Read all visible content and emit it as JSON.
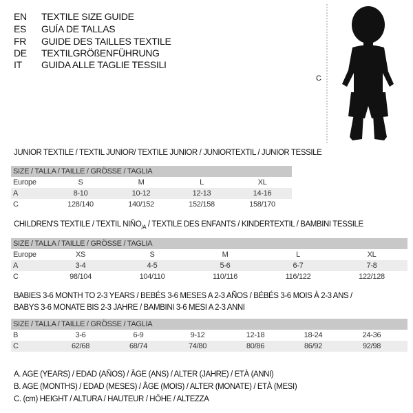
{
  "languages": [
    {
      "code": "EN",
      "text": "TEXTILE SIZE GUIDE"
    },
    {
      "code": "ES",
      "text": "GUÍA DE TALLAS"
    },
    {
      "code": "FR",
      "text": "GUIDE DES TAILLES TEXTILE"
    },
    {
      "code": "DE",
      "text": "TEXTILGRÖßENFÜHRUNG"
    },
    {
      "code": "IT",
      "text": "GUIDA ALLE TAGLIE TESSILI"
    }
  ],
  "figure": {
    "label": "C"
  },
  "junior": {
    "title": "JUNIOR TEXTILE / TEXTIL JUNIOR/ TEXTILE JUNIOR / JUNIORTEXTIL / JUNIOR TESSILE",
    "header": "SIZE / TALLA / TAILLE / GRÖSSE / TAGLIA",
    "rows": [
      {
        "label": "Europe",
        "cells": [
          "S",
          "M",
          "L",
          "XL"
        ]
      },
      {
        "label": "A",
        "cells": [
          "8-10",
          "10-12",
          "12-13",
          "14-16"
        ]
      },
      {
        "label": "C",
        "cells": [
          "128/140",
          "140/152",
          "152/158",
          "158/170"
        ]
      }
    ]
  },
  "children": {
    "title": "CHILDREN'S TEXTILE / TEXTIL NIÑO",
    "title_sub": "/A",
    "title_rest": " / TEXTILE DES ENFANTS / KINDERTEXTIL / BAMBINI TESSILE",
    "header": "SIZE / TALLA / TAILLE / GRÖSSE / TAGLIA",
    "rows": [
      {
        "label": "Europe",
        "cells": [
          "XS",
          "S",
          "M",
          "L",
          "XL"
        ]
      },
      {
        "label": "A",
        "cells": [
          "3-4",
          "4-5",
          "5-6",
          "6-7",
          "7-8"
        ]
      },
      {
        "label": "C",
        "cells": [
          "98/104",
          "104/110",
          "110/116",
          "116/122",
          "122/128"
        ]
      }
    ]
  },
  "babies": {
    "title1": "BABIES 3-6 MONTH TO 2-3 YEARS / BEBÉS 3-6 MESES A 2-3 AÑOS / BÉBÉS 3-6 MOIS À 2-3 ANS /",
    "title2": "BABYS 3-6 MONATE BIS 2-3 JAHRE / BAMBINI 3-6 MESI A 2-3 ANNI",
    "header": "SIZE / TALLA / TAILLE / GRÖSSE / TAGLIA",
    "rows": [
      {
        "label": "B",
        "cells": [
          "3-6",
          "6-9",
          "9-12",
          "12-18",
          "18-24",
          "24-36"
        ]
      },
      {
        "label": "C",
        "cells": [
          "62/68",
          "68/74",
          "74/80",
          "80/86",
          "86/92",
          "92/98"
        ]
      }
    ]
  },
  "legend": [
    "A. AGE (YEARS) / EDAD (AÑOS) / ÂGE (ANS) / ALTER (JAHRE) / ETÀ (ANNI)",
    "B. AGE (MONTHS) / EDAD (MESES) / ÂGE (MOIS) / ALTER (MONATE) / ETÀ (MESI)",
    "C. (cm) HEIGHT / ALTURA / HAUTEUR / HÖHE / ALTEZZA"
  ]
}
